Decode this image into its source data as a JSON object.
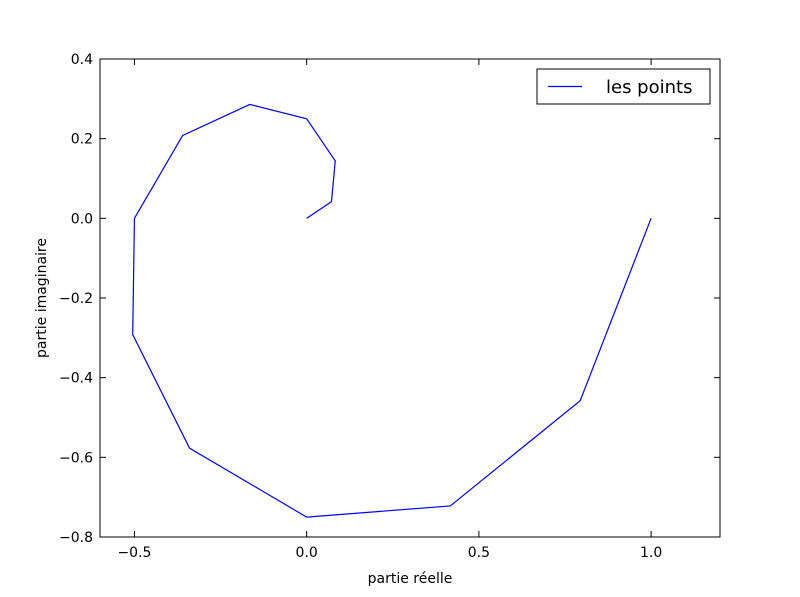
{
  "chart_data": {
    "type": "line",
    "xlabel": "partie réelle",
    "ylabel": "partie imaginaire",
    "xlim": [
      -0.6,
      1.2
    ],
    "ylim": [
      -0.8,
      0.4
    ],
    "x_ticks": [
      -0.5,
      0.0,
      0.5,
      1.0
    ],
    "x_tick_labels": [
      "−0.5",
      "0.0",
      "0.5",
      "1.0"
    ],
    "y_ticks": [
      0.4,
      0.2,
      0.0,
      -0.2,
      -0.4,
      -0.6,
      -0.8
    ],
    "y_tick_labels": [
      "0.4",
      "0.2",
      "0.0",
      "−0.2",
      "−0.4",
      "−0.6",
      "−0.8"
    ],
    "grid": false,
    "legend_position": "top-right",
    "series": [
      {
        "name": "les points",
        "color": "#0000ff",
        "x": [
          1.0,
          0.794,
          0.417,
          0.0,
          -0.34,
          -0.505,
          -0.5,
          -0.36,
          -0.165,
          0.0,
          0.083,
          0.072,
          0.0
        ],
        "y": [
          0.0,
          -0.458,
          -0.722,
          -0.75,
          -0.577,
          -0.292,
          0.0,
          0.208,
          0.286,
          0.25,
          0.144,
          0.042,
          0.0
        ]
      }
    ]
  }
}
